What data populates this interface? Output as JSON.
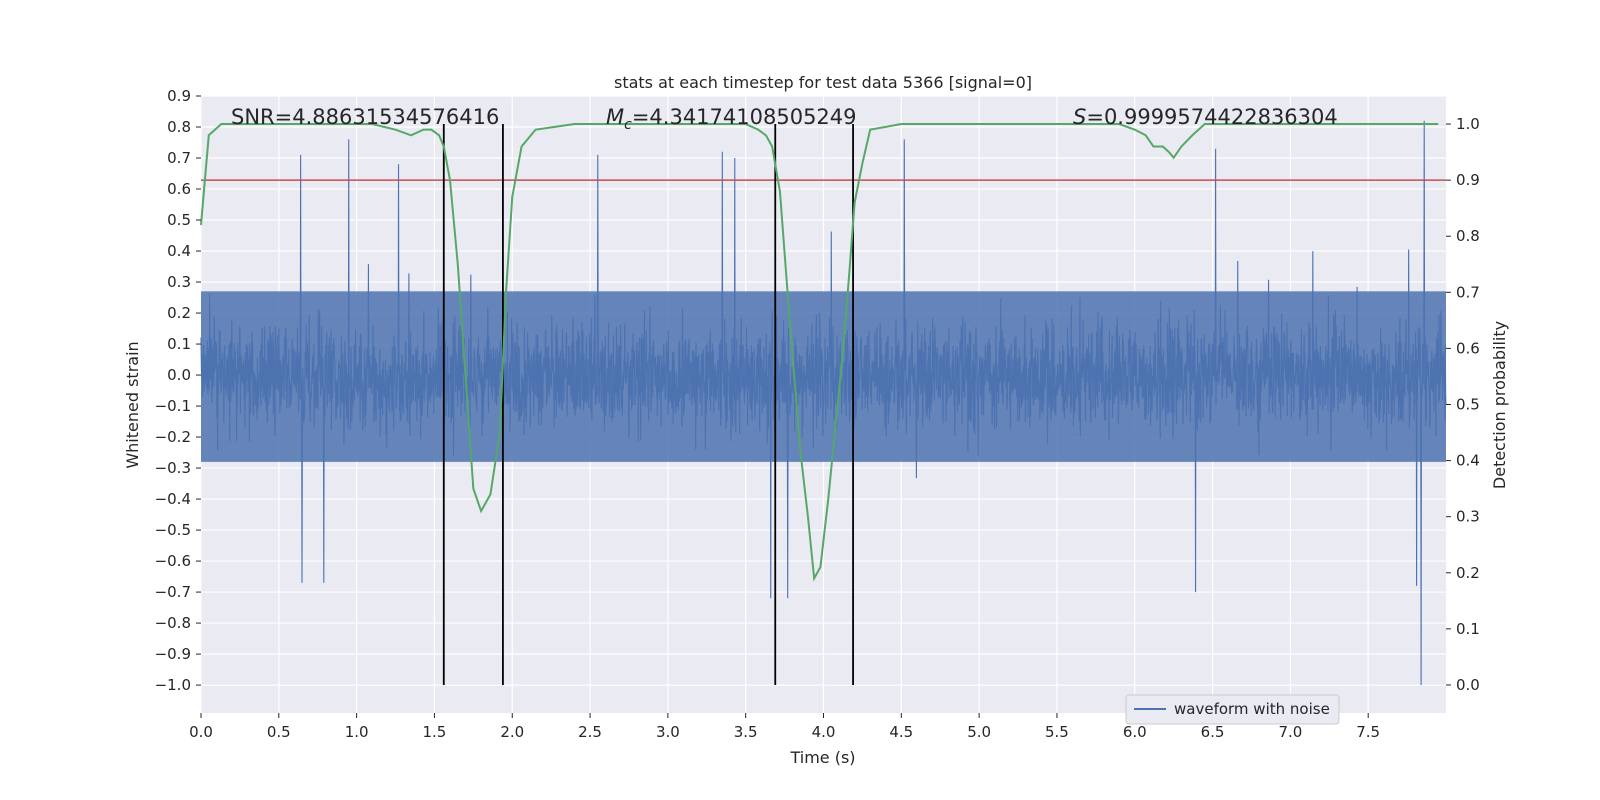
{
  "chart_data": {
    "type": "line",
    "title": "stats at each timestep for test data 5366 [signal=0]",
    "xlabel": "Time (s)",
    "ylabel_left": "Whitened strain",
    "ylabel_right": "Detection probability",
    "xlim": [
      0.0,
      8.0
    ],
    "ylim_left": [
      -1.09,
      0.9
    ],
    "ylim_right": [
      -0.05,
      1.05
    ],
    "x_ticks": [
      "0.0",
      "0.5",
      "1.0",
      "1.5",
      "2.0",
      "2.5",
      "3.0",
      "3.5",
      "4.0",
      "4.5",
      "5.0",
      "5.5",
      "6.0",
      "6.5",
      "7.0",
      "7.5"
    ],
    "y_left_ticks": [
      "0.9",
      "0.8",
      "0.7",
      "0.6",
      "0.5",
      "0.4",
      "0.3",
      "0.2",
      "0.1",
      "0.0",
      "−0.1",
      "−0.2",
      "−0.3",
      "−0.4",
      "−0.5",
      "−0.6",
      "−0.7",
      "−0.8",
      "−0.9",
      "−1.0"
    ],
    "y_right_ticks": [
      "1.0",
      "0.9",
      "0.8",
      "0.7",
      "0.6",
      "0.5",
      "0.4",
      "0.3",
      "0.2",
      "0.1",
      "0.0"
    ],
    "grid": true,
    "legend": {
      "placement": "lower-right",
      "entries": [
        "waveform with noise"
      ]
    },
    "annotations": {
      "snr": "SNR=4.88631534576416",
      "mc_symbol": "M",
      "mc_sub": "c",
      "mc_value": "=4.34174108505249",
      "s_symbol": "S",
      "s_value": "=0.9999574422836304"
    },
    "threshold_right": 0.9,
    "vertical_lines_x": [
      1.56,
      1.94,
      3.69,
      4.19
    ],
    "waveform": {
      "name": "waveform with noise",
      "x_range": [
        0.0,
        8.0
      ],
      "typical_envelope": [
        -0.28,
        0.27
      ],
      "peak_spikes": [
        {
          "x": 0.64,
          "y": 0.71
        },
        {
          "x": 0.95,
          "y": 0.76
        },
        {
          "x": 1.27,
          "y": 0.68
        },
        {
          "x": 2.55,
          "y": 0.71
        },
        {
          "x": 3.35,
          "y": 0.72
        },
        {
          "x": 3.43,
          "y": 0.7
        },
        {
          "x": 4.52,
          "y": 0.76
        },
        {
          "x": 6.52,
          "y": 0.73
        },
        {
          "x": 7.86,
          "y": 0.82
        },
        {
          "x": 0.65,
          "y": -0.67
        },
        {
          "x": 0.79,
          "y": -0.67
        },
        {
          "x": 3.66,
          "y": -0.72
        },
        {
          "x": 3.77,
          "y": -0.72
        },
        {
          "x": 6.39,
          "y": -0.7
        },
        {
          "x": 7.84,
          "y": -1.0
        },
        {
          "x": 7.81,
          "y": -0.68
        }
      ]
    },
    "detection_probability": {
      "x": [
        0.0,
        0.05,
        0.13,
        0.3,
        0.6,
        0.9,
        1.1,
        1.25,
        1.35,
        1.43,
        1.48,
        1.53,
        1.56,
        1.6,
        1.65,
        1.7,
        1.75,
        1.8,
        1.86,
        1.92,
        1.96,
        2.0,
        2.06,
        2.15,
        2.4,
        3.0,
        3.5,
        3.58,
        3.63,
        3.67,
        3.72,
        3.78,
        3.85,
        3.9,
        3.94,
        3.98,
        4.03,
        4.08,
        4.13,
        4.17,
        4.2,
        4.25,
        4.3,
        4.5,
        5.0,
        5.5,
        5.9,
        6.0,
        6.07,
        6.12,
        6.18,
        6.22,
        6.25,
        6.3,
        6.37,
        6.45,
        6.6,
        7.0,
        7.5,
        7.95
      ],
      "y": [
        0.82,
        0.98,
        1.0,
        1.0,
        1.0,
        1.0,
        1.0,
        0.99,
        0.98,
        0.99,
        0.99,
        0.98,
        0.96,
        0.9,
        0.75,
        0.55,
        0.35,
        0.31,
        0.34,
        0.45,
        0.7,
        0.87,
        0.96,
        0.99,
        1.0,
        1.0,
        1.0,
        0.99,
        0.98,
        0.96,
        0.88,
        0.66,
        0.42,
        0.3,
        0.19,
        0.21,
        0.33,
        0.47,
        0.61,
        0.75,
        0.86,
        0.93,
        0.99,
        1.0,
        1.0,
        1.0,
        1.0,
        0.99,
        0.98,
        0.96,
        0.96,
        0.95,
        0.94,
        0.96,
        0.98,
        1.0,
        1.0,
        1.0,
        1.0,
        1.0
      ]
    },
    "colors": {
      "axes_bg": "#eaeaf2",
      "grid": "#ffffff",
      "waveform": "#4c72b0",
      "probability": "#55a868",
      "threshold": "#c44e52",
      "markers": "#000000",
      "text": "#262626"
    }
  }
}
